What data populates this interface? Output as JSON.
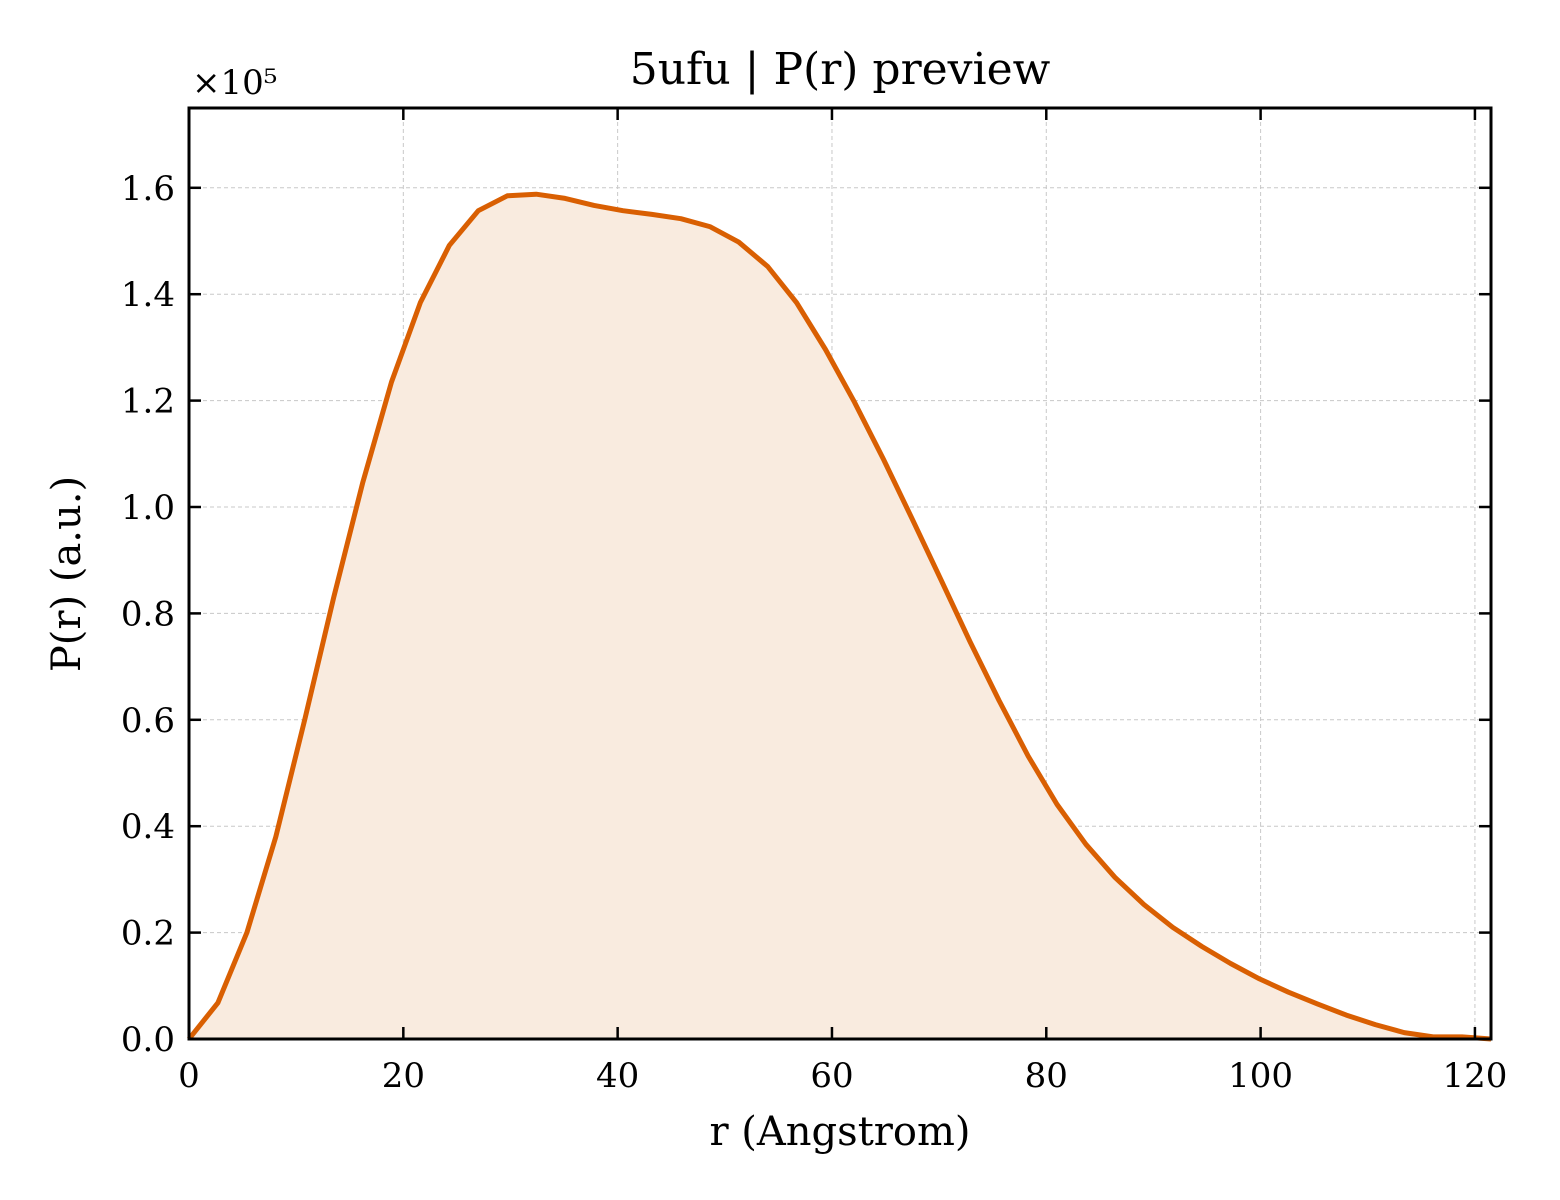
{
  "chart_data": {
    "type": "area",
    "title": "5ufu | P(r) preview",
    "xlabel": "r (Angstrom)",
    "ylabel": "P(r) (a.u.)",
    "y_multiplier_label": "×10⁵",
    "xlim": [
      0,
      121.5
    ],
    "ylim": [
      0,
      1.75
    ],
    "y_scale": 100000,
    "grid": true,
    "x_ticks": [
      0,
      20,
      40,
      60,
      80,
      100,
      120
    ],
    "x_tick_labels": [
      "0",
      "20",
      "40",
      "60",
      "80",
      "100",
      "120"
    ],
    "y_ticks": [
      0,
      0.2,
      0.4,
      0.6,
      0.8,
      1.0,
      1.2,
      1.4,
      1.6
    ],
    "y_tick_labels": [
      "0.0",
      "0.2",
      "0.4",
      "0.6",
      "0.8",
      "1.0",
      "1.2",
      "1.4",
      "1.6"
    ],
    "series": [
      {
        "color": "#d95f02",
        "fill_color": "#f9ebdf",
        "x": [
          0,
          2.7,
          5.4,
          8.1,
          10.8,
          13.5,
          16.2,
          18.9,
          21.6,
          24.3,
          27.0,
          29.7,
          32.4,
          35.1,
          37.8,
          40.5,
          43.2,
          45.9,
          48.6,
          51.3,
          54.0,
          56.7,
          59.4,
          62.1,
          64.8,
          67.5,
          70.2,
          72.9,
          75.6,
          78.3,
          81.0,
          83.7,
          86.4,
          89.1,
          91.8,
          94.5,
          97.2,
          99.9,
          102.6,
          105.3,
          108.0,
          110.7,
          113.4,
          116.1,
          118.8,
          121.5
        ],
        "y": [
          0.0,
          0.068,
          0.2,
          0.38,
          0.6,
          0.83,
          1.045,
          1.235,
          1.385,
          1.492,
          1.557,
          1.585,
          1.588,
          1.58,
          1.567,
          1.557,
          1.55,
          1.542,
          1.527,
          1.498,
          1.452,
          1.384,
          1.296,
          1.197,
          1.09,
          0.977,
          0.862,
          0.746,
          0.636,
          0.532,
          0.441,
          0.366,
          0.304,
          0.253,
          0.21,
          0.174,
          0.142,
          0.113,
          0.088,
          0.066,
          0.045,
          0.027,
          0.012,
          0.004,
          0.004,
          0.0
        ]
      }
    ]
  }
}
